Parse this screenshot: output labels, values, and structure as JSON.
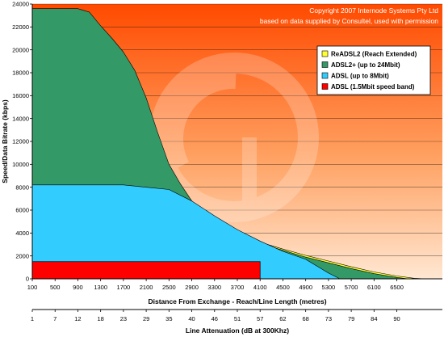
{
  "chart_data": {
    "type": "area",
    "copyright_lines": [
      "Copyright 2007 Internode Systems Pty Ltd",
      "based on data supplied by Consultel, used with permission"
    ],
    "ylabel": "Speed/Data Bitrate (kbps)",
    "xlabel": "Distance From Exchange - Reach/Line Length (metres)",
    "x2label": "Line Attenuation (dB at 300Khz)",
    "ylim": [
      0,
      24000
    ],
    "xlim": [
      100,
      7300
    ],
    "yticks": [
      0,
      2000,
      4000,
      6000,
      8000,
      10000,
      12000,
      14000,
      16000,
      18000,
      20000,
      22000,
      24000
    ],
    "ytick_labels": [
      "0",
      "2000",
      "4000",
      "6000",
      "8000",
      "10000",
      "12000",
      "14000",
      "16000",
      "18000",
      "20000",
      "22000",
      "24000"
    ],
    "xticks": [
      100,
      500,
      900,
      1300,
      1700,
      2100,
      2500,
      2900,
      3300,
      3700,
      4100,
      4500,
      4900,
      5300,
      5700,
      6100,
      6500
    ],
    "xtick_labels": [
      "100",
      "500",
      "900",
      "1300",
      "1700",
      "2100",
      "2500",
      "2900",
      "3300",
      "3700",
      "4100",
      "4500",
      "4900",
      "5300",
      "5700",
      "6100",
      "6500"
    ],
    "x2ticks": [
      100,
      500,
      900,
      1300,
      1700,
      2100,
      2500,
      2900,
      3300,
      3700,
      4100,
      4500,
      4900,
      5300,
      5700,
      6100,
      6500
    ],
    "x2tick_labels": [
      "1",
      "7",
      "12",
      "18",
      "23",
      "29",
      "35",
      "40",
      "46",
      "51",
      "57",
      "62",
      "68",
      "73",
      "79",
      "84",
      "90"
    ],
    "grid": true,
    "legend_position": "top-right",
    "series": [
      {
        "name": "ReADSL2 (Reach Extended)",
        "color": "#ffff33",
        "points": [
          [
            100,
            0
          ],
          [
            3700,
            3700
          ],
          [
            4100,
            3200
          ],
          [
            4500,
            2600
          ],
          [
            4900,
            2050
          ],
          [
            5300,
            1550
          ],
          [
            5700,
            1050
          ],
          [
            6100,
            600
          ],
          [
            6500,
            250
          ],
          [
            6800,
            50
          ],
          [
            7000,
            0
          ]
        ]
      },
      {
        "name": "ADSL2+ (up to 24Mbit)",
        "color": "#339966",
        "points": [
          [
            100,
            23600
          ],
          [
            500,
            23600
          ],
          [
            900,
            23600
          ],
          [
            1100,
            23300
          ],
          [
            1300,
            22100
          ],
          [
            1500,
            21000
          ],
          [
            1700,
            19800
          ],
          [
            1900,
            18200
          ],
          [
            2100,
            15800
          ],
          [
            2300,
            12800
          ],
          [
            2500,
            10000
          ],
          [
            2700,
            8300
          ],
          [
            2900,
            6800
          ],
          [
            3100,
            5600
          ],
          [
            3300,
            4800
          ],
          [
            3500,
            4200
          ],
          [
            3700,
            3700
          ],
          [
            4100,
            3100
          ],
          [
            4500,
            2500
          ],
          [
            4900,
            1900
          ],
          [
            5300,
            1400
          ],
          [
            5700,
            900
          ],
          [
            6100,
            450
          ],
          [
            6500,
            120
          ],
          [
            6700,
            0
          ]
        ]
      },
      {
        "name": "ADSL (up to 8Mbit)",
        "color": "#33ccff",
        "points": [
          [
            100,
            8200
          ],
          [
            500,
            8200
          ],
          [
            900,
            8200
          ],
          [
            1300,
            8200
          ],
          [
            1700,
            8200
          ],
          [
            2100,
            8000
          ],
          [
            2500,
            7800
          ],
          [
            2900,
            6800
          ],
          [
            3300,
            5500
          ],
          [
            3700,
            4300
          ],
          [
            4100,
            3300
          ],
          [
            4500,
            2400
          ],
          [
            4900,
            1700
          ],
          [
            5100,
            1100
          ],
          [
            5300,
            500
          ],
          [
            5500,
            0
          ]
        ]
      },
      {
        "name": "ADSL (1.5Mbit speed band)",
        "color": "#ff0000",
        "points": [
          [
            100,
            1500
          ],
          [
            4100,
            1500
          ]
        ]
      }
    ]
  }
}
